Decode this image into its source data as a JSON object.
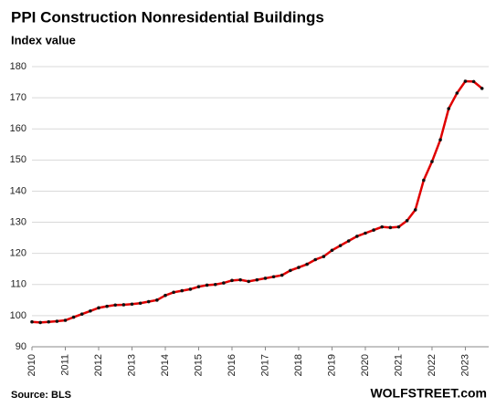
{
  "chart_data": {
    "type": "line",
    "title": "PPI Construction  Nonresidential  Buildings",
    "subtitle": "Index value",
    "source": "Source: BLS",
    "watermark": "WOLFSTREET.com",
    "x": [
      2010,
      2010.25,
      2010.5,
      2010.75,
      2011,
      2011.25,
      2011.5,
      2011.75,
      2012,
      2012.25,
      2012.5,
      2012.75,
      2013,
      2013.25,
      2013.5,
      2013.75,
      2014,
      2014.25,
      2014.5,
      2014.75,
      2015,
      2015.25,
      2015.5,
      2015.75,
      2016,
      2016.25,
      2016.5,
      2016.75,
      2017,
      2017.25,
      2017.5,
      2017.75,
      2018,
      2018.25,
      2018.5,
      2018.75,
      2019,
      2019.25,
      2019.5,
      2019.75,
      2020,
      2020.25,
      2020.5,
      2020.75,
      2021,
      2021.25,
      2021.5,
      2021.75,
      2022,
      2022.25,
      2022.5,
      2022.75,
      2023,
      2023.25,
      2023.5
    ],
    "values": [
      98,
      97.8,
      98,
      98.2,
      98.5,
      99.5,
      100.5,
      101.5,
      102.5,
      103,
      103.4,
      103.5,
      103.7,
      104,
      104.5,
      105,
      106.5,
      107.5,
      108,
      108.5,
      109.3,
      109.8,
      110,
      110.5,
      111.3,
      111.5,
      111,
      111.5,
      112,
      112.5,
      113,
      114.5,
      115.5,
      116.5,
      118,
      119,
      121,
      122.5,
      124,
      125.5,
      126.5,
      127.5,
      128.5,
      128.3,
      128.5,
      130.5,
      134,
      143.5,
      149.5,
      156.5,
      166.5,
      171.5,
      175.3,
      175.2,
      173
    ],
    "color": "#e00000",
    "marker_color": "#111111",
    "xlim": [
      2010,
      2023.7
    ],
    "xticks": [
      2010,
      2011,
      2012,
      2013,
      2014,
      2015,
      2016,
      2017,
      2018,
      2019,
      2020,
      2021,
      2022,
      2023
    ],
    "ylim": [
      90,
      180
    ],
    "yticks": [
      90,
      100,
      110,
      120,
      130,
      140,
      150,
      160,
      170,
      180
    ],
    "grid": true
  }
}
